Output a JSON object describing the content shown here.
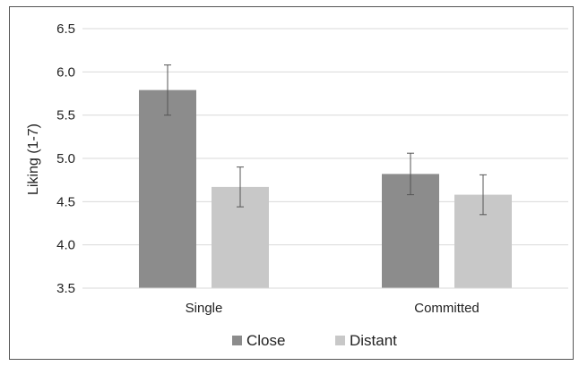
{
  "chart_data": {
    "type": "bar",
    "categories": [
      "Single",
      "Committed"
    ],
    "series": [
      {
        "name": "Close",
        "values": [
          5.79,
          4.82
        ],
        "errors": [
          0.29,
          0.24
        ],
        "color": "#8c8c8c"
      },
      {
        "name": "Distant",
        "values": [
          4.67,
          4.58
        ],
        "errors": [
          0.23,
          0.23
        ],
        "color": "#c8c8c8"
      }
    ],
    "ylabel": "Liking (1-7)",
    "xlabel": "",
    "ylim": [
      3.5,
      6.5
    ],
    "yticks": [
      "3.5",
      "4.0",
      "4.5",
      "5.0",
      "5.5",
      "6.0",
      "6.5"
    ],
    "grid": true,
    "legend_position": "bottom",
    "gridline_color": "#d9d9d9",
    "error_bar_color": "#555555"
  }
}
